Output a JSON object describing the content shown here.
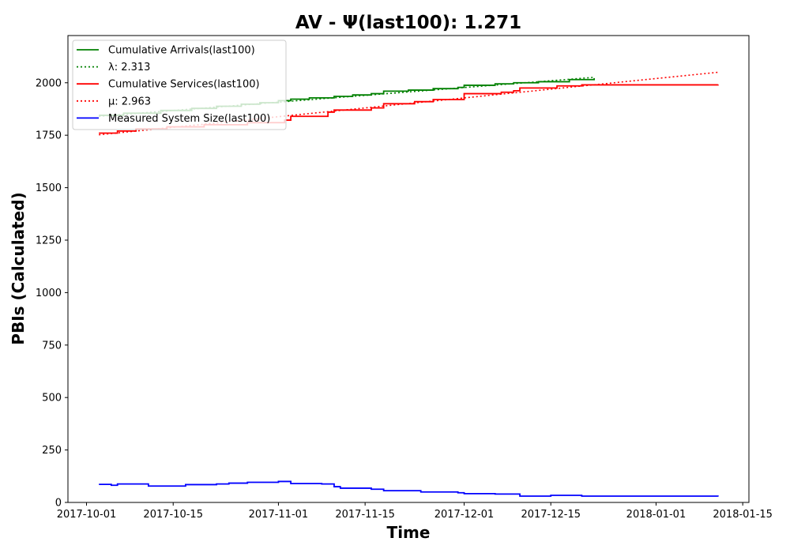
{
  "chart_data": {
    "type": "line",
    "title": "AV -  Ψ(last100): 1.271",
    "xlabel": "Time",
    "ylabel": "PBIs (Calculated)",
    "xlim": [
      "2017-09-28",
      "2018-01-16"
    ],
    "ylim": [
      0,
      2225
    ],
    "x_ticks": [
      "2017-10-01",
      "2017-10-15",
      "2017-11-01",
      "2017-11-15",
      "2017-12-01",
      "2017-12-15",
      "2018-01-01",
      "2018-01-15"
    ],
    "y_ticks": [
      0,
      250,
      500,
      750,
      1000,
      1250,
      1500,
      1750,
      2000
    ],
    "grid": false,
    "legend_position": "top-left",
    "series": [
      {
        "name": "Cumulative Arrivals(last100)",
        "color": "#008000",
        "style": "solid",
        "step": true,
        "points": [
          [
            "2017-10-03",
            1845
          ],
          [
            "2017-10-07",
            1855
          ],
          [
            "2017-10-13",
            1868
          ],
          [
            "2017-10-18",
            1878
          ],
          [
            "2017-10-22",
            1888
          ],
          [
            "2017-10-26",
            1898
          ],
          [
            "2017-10-29",
            1905
          ],
          [
            "2017-11-01",
            1915
          ],
          [
            "2017-11-03",
            1922
          ],
          [
            "2017-11-06",
            1928
          ],
          [
            "2017-11-10",
            1935
          ],
          [
            "2017-11-13",
            1942
          ],
          [
            "2017-11-16",
            1948
          ],
          [
            "2017-11-18",
            1960
          ],
          [
            "2017-11-22",
            1965
          ],
          [
            "2017-11-26",
            1972
          ],
          [
            "2017-11-30",
            1978
          ],
          [
            "2017-12-01",
            1988
          ],
          [
            "2017-12-06",
            1995
          ],
          [
            "2017-12-09",
            2000
          ],
          [
            "2017-12-13",
            2005
          ],
          [
            "2017-12-18",
            2015
          ],
          [
            "2017-12-22",
            2022
          ]
        ]
      },
      {
        "name": "λ: 2.313",
        "color": "#008000",
        "style": "dotted",
        "step": false,
        "points": [
          [
            "2017-10-03",
            1840
          ],
          [
            "2017-12-22",
            2026
          ]
        ]
      },
      {
        "name": "Cumulative Services(last100)",
        "color": "#ff0000",
        "style": "solid",
        "step": true,
        "points": [
          [
            "2017-10-03",
            1760
          ],
          [
            "2017-10-06",
            1770
          ],
          [
            "2017-10-09",
            1780
          ],
          [
            "2017-10-14",
            1790
          ],
          [
            "2017-10-20",
            1800
          ],
          [
            "2017-10-27",
            1810
          ],
          [
            "2017-11-02",
            1822
          ],
          [
            "2017-11-03",
            1840
          ],
          [
            "2017-11-09",
            1860
          ],
          [
            "2017-11-10",
            1870
          ],
          [
            "2017-11-16",
            1880
          ],
          [
            "2017-11-18",
            1900
          ],
          [
            "2017-11-23",
            1910
          ],
          [
            "2017-11-26",
            1920
          ],
          [
            "2017-12-01",
            1930
          ],
          [
            "2017-12-01",
            1948
          ],
          [
            "2017-12-07",
            1955
          ],
          [
            "2017-12-09",
            1962
          ],
          [
            "2017-12-10",
            1975
          ],
          [
            "2017-12-16",
            1985
          ],
          [
            "2017-12-20",
            1990
          ],
          [
            "2018-01-11",
            1992
          ]
        ]
      },
      {
        "name": "μ: 2.963",
        "color": "#ff0000",
        "style": "dotted",
        "step": false,
        "points": [
          [
            "2017-10-03",
            1752
          ],
          [
            "2018-01-11",
            2050
          ]
        ]
      },
      {
        "name": "Measured System Size(last100)",
        "color": "#0000ff",
        "style": "solid",
        "step": true,
        "points": [
          [
            "2017-10-03",
            86
          ],
          [
            "2017-10-05",
            82
          ],
          [
            "2017-10-06",
            88
          ],
          [
            "2017-10-11",
            78
          ],
          [
            "2017-10-17",
            85
          ],
          [
            "2017-10-22",
            88
          ],
          [
            "2017-10-24",
            92
          ],
          [
            "2017-10-27",
            96
          ],
          [
            "2017-11-01",
            100
          ],
          [
            "2017-11-03",
            90
          ],
          [
            "2017-11-08",
            88
          ],
          [
            "2017-11-10",
            75
          ],
          [
            "2017-11-11",
            68
          ],
          [
            "2017-11-16",
            63
          ],
          [
            "2017-11-18",
            56
          ],
          [
            "2017-11-24",
            50
          ],
          [
            "2017-11-30",
            46
          ],
          [
            "2017-12-01",
            42
          ],
          [
            "2017-12-06",
            40
          ],
          [
            "2017-12-10",
            30
          ],
          [
            "2017-12-15",
            34
          ],
          [
            "2017-12-20",
            30
          ],
          [
            "2018-01-11",
            28
          ]
        ]
      }
    ],
    "legend": [
      {
        "label": "Cumulative Arrivals(last100)",
        "color": "#008000",
        "style": "solid"
      },
      {
        "label": "λ: 2.313",
        "color": "#008000",
        "style": "dotted"
      },
      {
        "label": "Cumulative Services(last100)",
        "color": "#ff0000",
        "style": "solid"
      },
      {
        "label": "μ: 2.963",
        "color": "#ff0000",
        "style": "dotted"
      },
      {
        "label": "Measured System Size(last100)",
        "color": "#0000ff",
        "style": "solid"
      }
    ]
  }
}
